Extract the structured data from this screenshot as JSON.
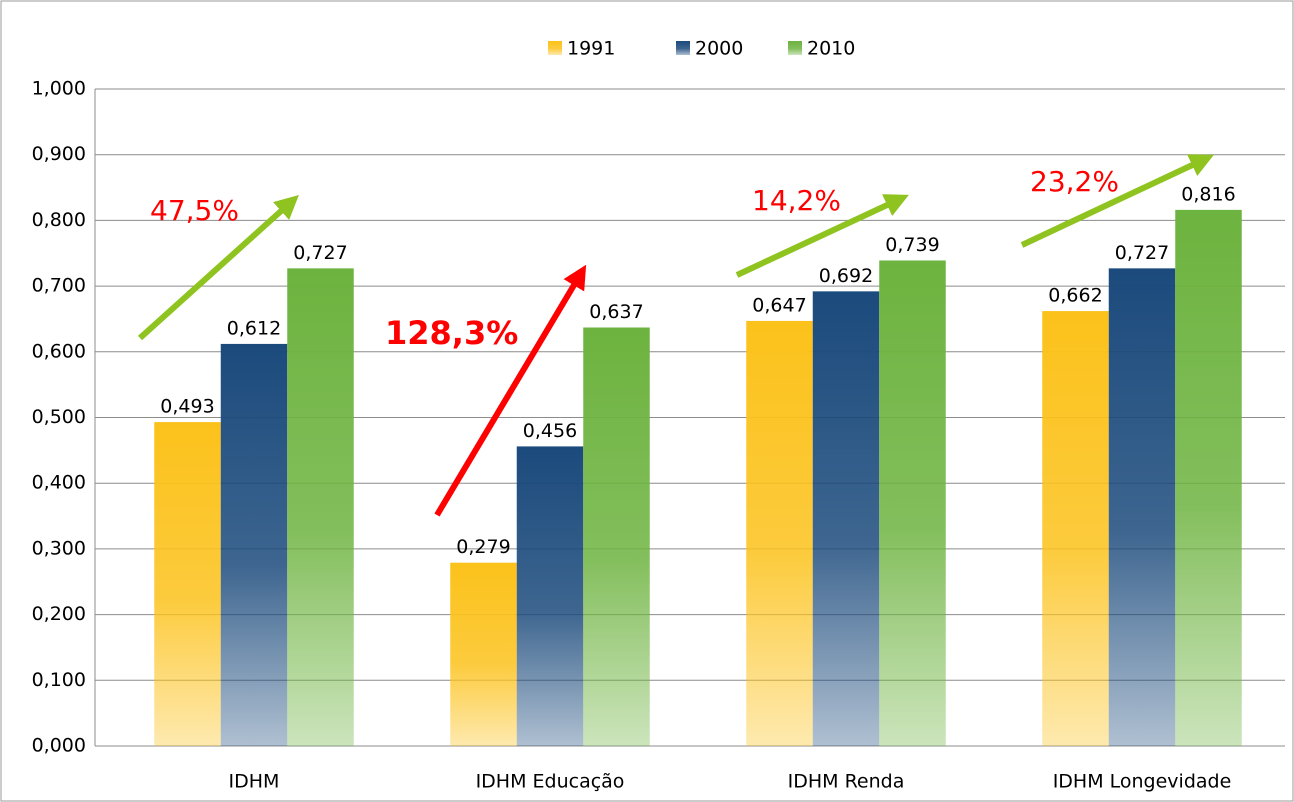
{
  "chart_data": {
    "type": "bar",
    "categories": [
      "IDHM",
      "IDHM Educação",
      "IDHM Renda",
      "IDHM Longevidade"
    ],
    "series": [
      {
        "name": "1991",
        "color": "#fcc21b",
        "values": [
          0.493,
          0.279,
          0.647,
          0.662
        ],
        "value_labels": [
          "0,493",
          "0,279",
          "0,647",
          "0,662"
        ]
      },
      {
        "name": "2000",
        "color": "#1b4a7c",
        "values": [
          0.612,
          0.456,
          0.692,
          0.727
        ],
        "value_labels": [
          "0,612",
          "0,456",
          "0,692",
          "0,727"
        ]
      },
      {
        "name": "2010",
        "color": "#6db33f",
        "values": [
          0.727,
          0.637,
          0.739,
          0.816
        ],
        "value_labels": [
          "0,727",
          "0,637",
          "0,739",
          "0,816"
        ]
      }
    ],
    "ylim": [
      0,
      1
    ],
    "yticks": [
      {
        "value": 0,
        "label": "0,000"
      },
      {
        "value": 0.1,
        "label": "0,100"
      },
      {
        "value": 0.2,
        "label": "0,200"
      },
      {
        "value": 0.3,
        "label": "0,300"
      },
      {
        "value": 0.4,
        "label": "0,400"
      },
      {
        "value": 0.5,
        "label": "0,500"
      },
      {
        "value": 0.6,
        "label": "0,600"
      },
      {
        "value": 0.7,
        "label": "0,700"
      },
      {
        "value": 0.8,
        "label": "0,800"
      },
      {
        "value": 0.9,
        "label": "0,900"
      },
      {
        "value": 1,
        "label": "1,000"
      }
    ],
    "grid": true,
    "legend": "top",
    "annotations": [
      "47,5%",
      "128,3%",
      "14,2%",
      "23,2%"
    ]
  }
}
